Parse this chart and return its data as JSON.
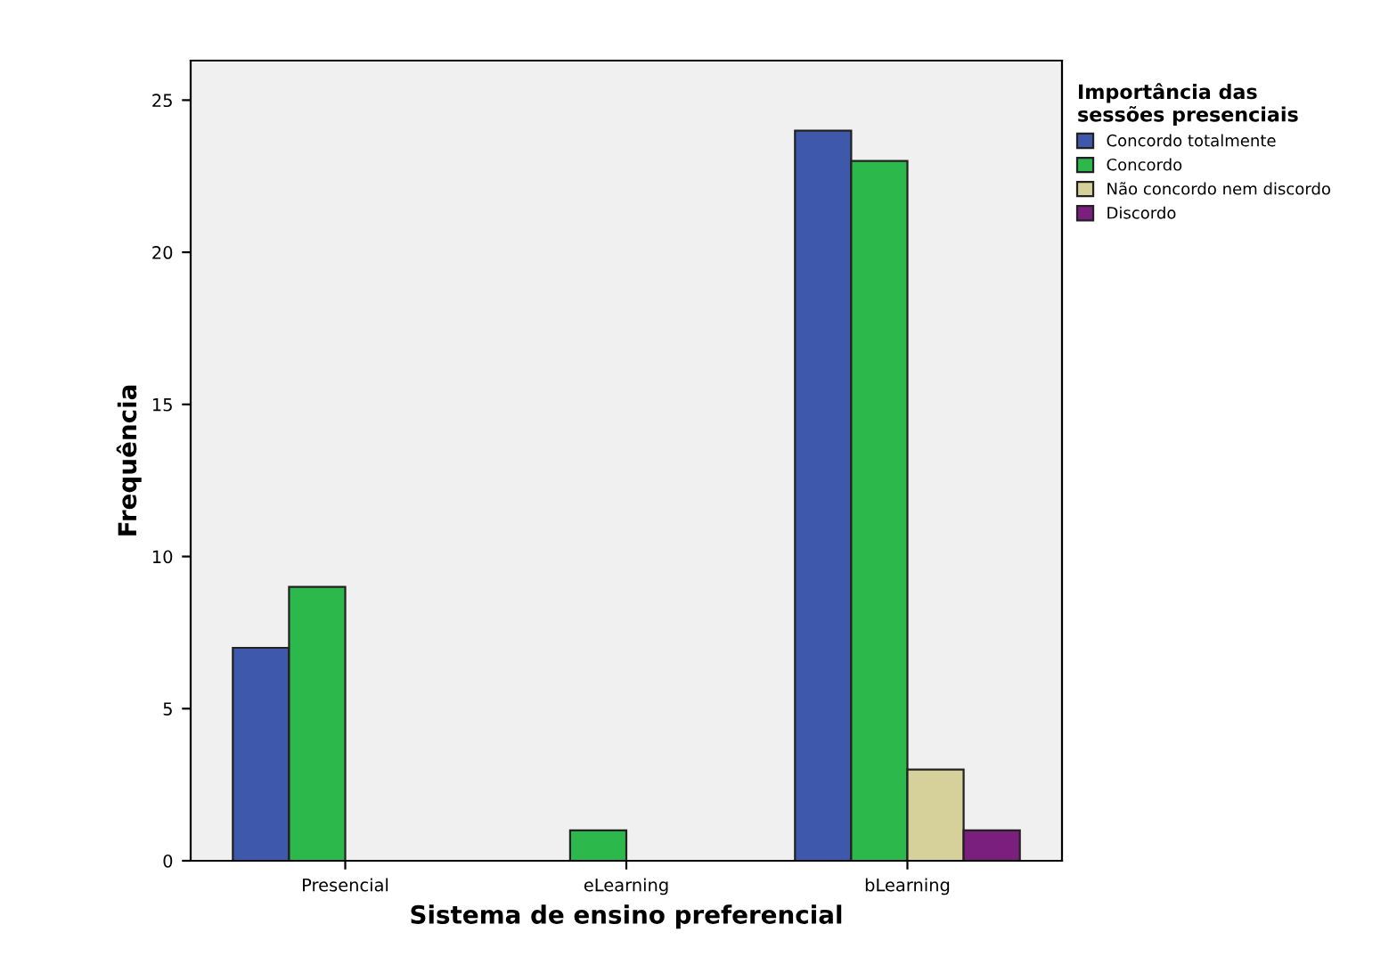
{
  "chart_data": {
    "type": "bar",
    "xlabel": "Sistema de ensino preferencial",
    "ylabel": "Frequência",
    "legend_title": "Importância das\nsessões presenciais",
    "categories": [
      "Presencial",
      "eLearning",
      "bLearning"
    ],
    "series": [
      {
        "name": "Concordo totalmente",
        "color": "#3e58ac",
        "values": [
          7,
          null,
          24
        ]
      },
      {
        "name": "Concordo",
        "color": "#2db84b",
        "values": [
          9,
          1,
          23
        ]
      },
      {
        "name": "Não concordo nem discordo",
        "color": "#d6d09a",
        "values": [
          null,
          null,
          3
        ]
      },
      {
        "name": "Discordo",
        "color": "#7b1f7f",
        "values": [
          null,
          null,
          1
        ]
      }
    ],
    "ylim": [
      0,
      26.3
    ],
    "yticks": [
      0,
      5,
      10,
      15,
      20,
      25
    ],
    "grid": false,
    "legend": "top right"
  }
}
